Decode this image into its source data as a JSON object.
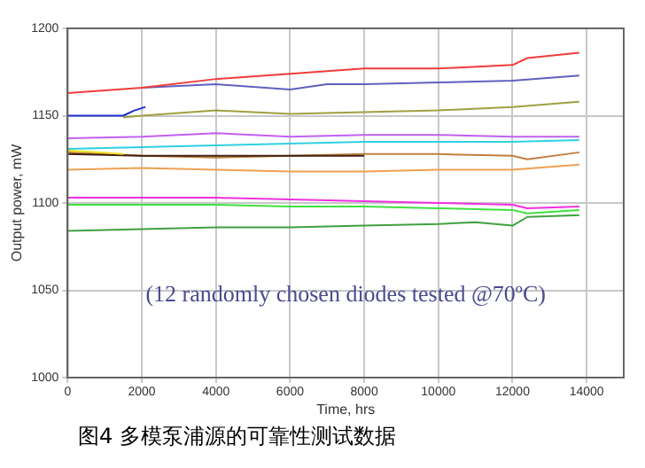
{
  "chart_data": {
    "type": "line",
    "xlabel": "Time, hrs",
    "ylabel": "Output power, mW",
    "xlim": [
      0,
      15000
    ],
    "xticks": [
      0,
      2000,
      4000,
      6000,
      8000,
      10000,
      12000,
      14000
    ],
    "ylim": [
      1000,
      1200
    ],
    "yticks": [
      1000,
      1050,
      1100,
      1150,
      1200
    ],
    "grid": true,
    "legend": false,
    "marker": "none",
    "line_style": "solid",
    "series": [
      {
        "color": "#f03c3c",
        "x": [
          0,
          2000,
          4000,
          6000,
          8000,
          10000,
          12000,
          12400,
          13800
        ],
        "values": [
          1163,
          1166,
          1171,
          1174,
          1177,
          1177,
          1179,
          1183,
          1186
        ]
      },
      {
        "color": "#6060c0",
        "x": [
          2000,
          4000,
          6000,
          7000,
          8000,
          10000,
          12000,
          13800
        ],
        "values": [
          1166,
          1168,
          1165,
          1168,
          1168,
          1169,
          1170,
          1173
        ]
      },
      {
        "color": "#2030d0",
        "x": [
          0,
          1500,
          1800,
          2100
        ],
        "values": [
          1150,
          1150,
          1153,
          1155
        ]
      },
      {
        "color": "#a0a040",
        "x": [
          1500,
          2000,
          4000,
          6000,
          8000,
          10000,
          12000,
          13800
        ],
        "values": [
          1149,
          1150,
          1153,
          1151,
          1152,
          1153,
          1155,
          1158
        ]
      },
      {
        "color": "#c060f0",
        "x": [
          0,
          2000,
          4000,
          6000,
          8000,
          10000,
          12000,
          13800
        ],
        "values": [
          1137,
          1138,
          1140,
          1138,
          1139,
          1139,
          1138,
          1138
        ]
      },
      {
        "color": "#30d0e0",
        "x": [
          0,
          2000,
          4000,
          6000,
          8000,
          10000,
          12000,
          13800
        ],
        "values": [
          1131,
          1132,
          1133,
          1134,
          1135,
          1135,
          1135,
          1136
        ]
      },
      {
        "color": "#f0e020",
        "x": [
          0,
          800,
          1500
        ],
        "values": [
          1130,
          1129,
          1128
        ]
      },
      {
        "color": "#402010",
        "x": [
          0,
          2000,
          4000,
          6000,
          8000
        ],
        "values": [
          1128,
          1127,
          1127,
          1127,
          1127
        ]
      },
      {
        "color": "#c08040",
        "x": [
          0,
          2000,
          4000,
          6000,
          8000,
          10000,
          12000,
          12400,
          13800
        ],
        "values": [
          1129,
          1127,
          1126,
          1127,
          1128,
          1128,
          1127,
          1125,
          1129
        ]
      },
      {
        "color": "#f0a050",
        "x": [
          0,
          2000,
          4000,
          6000,
          8000,
          10000,
          12000,
          13800
        ],
        "values": [
          1119,
          1120,
          1119,
          1118,
          1118,
          1119,
          1119,
          1122
        ]
      },
      {
        "color": "#f030e0",
        "x": [
          0,
          2000,
          4000,
          6000,
          8000,
          10000,
          12000,
          12400,
          13800
        ],
        "values": [
          1103,
          1103,
          1103,
          1102,
          1101,
          1100,
          1099,
          1097,
          1098
        ]
      },
      {
        "color": "#40e040",
        "x": [
          0,
          2000,
          4000,
          6000,
          8000,
          10000,
          12000,
          12400,
          13800
        ],
        "values": [
          1099,
          1099,
          1099,
          1098,
          1098,
          1097,
          1096,
          1094,
          1096
        ]
      },
      {
        "color": "#40a040",
        "x": [
          0,
          2000,
          4000,
          6000,
          8000,
          10000,
          11000,
          12000,
          12400,
          13800
        ],
        "values": [
          1084,
          1085,
          1086,
          1086,
          1087,
          1088,
          1089,
          1087,
          1092,
          1093
        ]
      }
    ],
    "annotations": [
      "(12 randomly chosen diodes tested @70ºC)",
      "图4  多模泵浦源的可靠性测试数据"
    ]
  }
}
